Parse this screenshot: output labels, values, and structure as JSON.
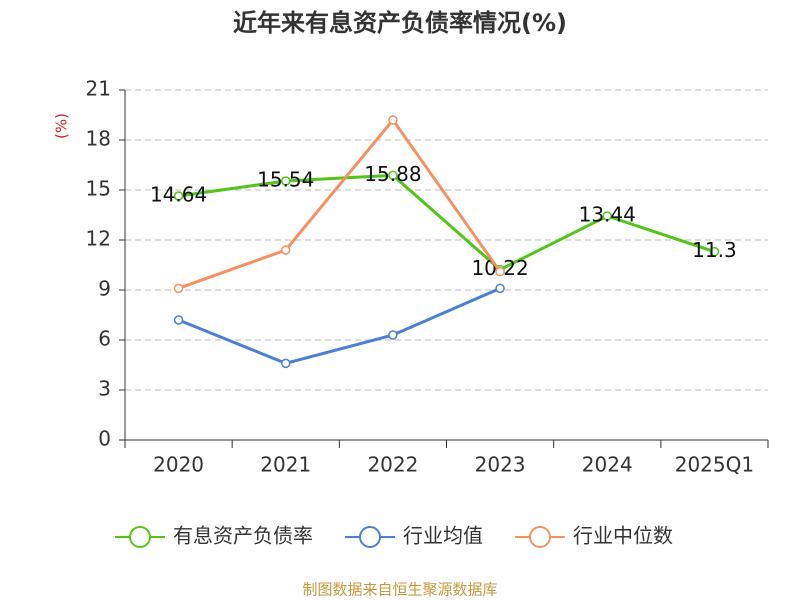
{
  "chart_data": {
    "type": "line",
    "title": "近年来有息资产负债率情况(%)",
    "y_label": "(%)",
    "categories": [
      "2020",
      "2021",
      "2022",
      "2023",
      "2024",
      "2025Q1"
    ],
    "series": [
      {
        "name": "有息资产负债率",
        "color": "#52c41a",
        "values": [
          14.64,
          15.54,
          15.88,
          10.22,
          13.44,
          11.3
        ],
        "show_labels": true
      },
      {
        "name": "行业均值",
        "color": "#4a7fd6",
        "values": [
          7.2,
          4.6,
          6.3,
          9.1,
          null,
          null
        ],
        "show_labels": false
      },
      {
        "name": "行业中位数",
        "color": "#f59160",
        "values": [
          9.1,
          11.4,
          19.2,
          10.1,
          null,
          null
        ],
        "show_labels": false
      }
    ],
    "ylim": [
      0,
      21
    ],
    "yticks": [
      0,
      3,
      6,
      9,
      12,
      15,
      18,
      21
    ],
    "grid": true,
    "legend": "bottom",
    "source": "制图数据来自恒生聚源数据库"
  }
}
